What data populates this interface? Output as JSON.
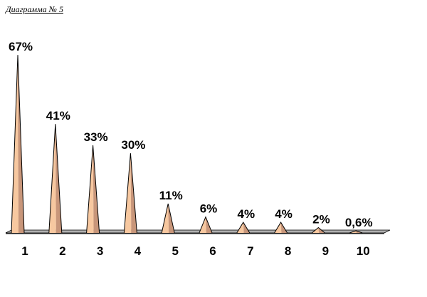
{
  "chart_data": {
    "type": "bar",
    "title": "Диаграмма № 5",
    "categories": [
      "1",
      "2",
      "3",
      "4",
      "5",
      "6",
      "7",
      "8",
      "9",
      "10"
    ],
    "values": [
      67,
      41,
      33,
      30,
      11,
      6,
      4,
      4,
      2,
      0.6
    ],
    "data_labels": [
      "67%",
      "41%",
      "33%",
      "30%",
      "11%",
      "6%",
      "4%",
      "4%",
      "2%",
      "0,6%"
    ],
    "xlabel": "",
    "ylabel": "",
    "ylim": [
      0,
      70
    ],
    "grid": false,
    "legend": "none",
    "mark_shape": "3d-cone",
    "colors": {
      "cone_fill": "#f7c8a0",
      "cone_shade": "#c8967a",
      "cone_outline": "#000000",
      "floor": "#b0b0b0"
    }
  }
}
